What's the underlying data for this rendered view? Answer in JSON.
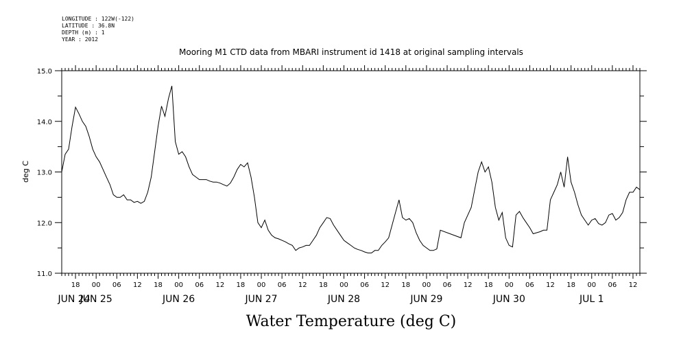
{
  "header": {
    "meta_lines": [
      "LONGITUDE : 122W(-122)",
      "LATITUDE : 36.8N",
      "DEPTH (m) : 1",
      "YEAR : 2012"
    ],
    "title": "Mooring M1 CTD data from MBARI instrument id 1418 at original sampling intervals"
  },
  "footer": {
    "bottom_title": "Water Temperature (deg C)"
  },
  "chart_data": {
    "type": "line",
    "title": "Mooring M1 CTD data from MBARI instrument id 1418 at original sampling intervals",
    "ylabel": "deg C",
    "xlabel": "",
    "ylim": [
      11.0,
      15.0
    ],
    "yticks": [
      "11.0",
      "12.0",
      "13.0",
      "14.0",
      "15.0"
    ],
    "xlim": [
      "2012-06-24 14:00",
      "2012-07-01 14:00"
    ],
    "x_hour_ticks": [
      "18",
      "00",
      "06",
      "12",
      "18",
      "00",
      "06",
      "12",
      "18",
      "00",
      "06",
      "12",
      "18",
      "00",
      "06",
      "12",
      "18",
      "00",
      "06",
      "12",
      "18",
      "00",
      "06",
      "12",
      "18",
      "00",
      "06",
      "12"
    ],
    "x_day_labels": [
      {
        "label": "JUN 24",
        "date": "2012-06-24"
      },
      {
        "label": "JUN 25",
        "date": "2012-06-25"
      },
      {
        "label": "JUN 26",
        "date": "2012-06-26"
      },
      {
        "label": "JUN 27",
        "date": "2012-06-27"
      },
      {
        "label": "JUN 28",
        "date": "2012-06-28"
      },
      {
        "label": "JUN 29",
        "date": "2012-06-29"
      },
      {
        "label": "JUN 30",
        "date": "2012-06-30"
      },
      {
        "label": "JUL 1",
        "date": "2012-07-01"
      }
    ],
    "grid": false,
    "series": [
      {
        "color": "#000000",
        "points": [
          [
            "2012-06-24 14:00",
            13.0
          ],
          [
            "2012-06-24 15:00",
            13.35
          ],
          [
            "2012-06-24 16:00",
            13.45
          ],
          [
            "2012-06-24 17:00",
            13.9
          ],
          [
            "2012-06-24 18:00",
            14.28
          ],
          [
            "2012-06-24 19:00",
            14.15
          ],
          [
            "2012-06-24 20:00",
            14.0
          ],
          [
            "2012-06-24 21:00",
            13.9
          ],
          [
            "2012-06-24 22:00",
            13.7
          ],
          [
            "2012-06-24 23:00",
            13.45
          ],
          [
            "2012-06-25 00:00",
            13.3
          ],
          [
            "2012-06-25 01:00",
            13.2
          ],
          [
            "2012-06-25 02:00",
            13.05
          ],
          [
            "2012-06-25 03:00",
            12.9
          ],
          [
            "2012-06-25 04:00",
            12.75
          ],
          [
            "2012-06-25 05:00",
            12.55
          ],
          [
            "2012-06-25 06:00",
            12.5
          ],
          [
            "2012-06-25 07:00",
            12.5
          ],
          [
            "2012-06-25 08:00",
            12.55
          ],
          [
            "2012-06-25 09:00",
            12.45
          ],
          [
            "2012-06-25 10:00",
            12.45
          ],
          [
            "2012-06-25 11:00",
            12.4
          ],
          [
            "2012-06-25 12:00",
            12.42
          ],
          [
            "2012-06-25 13:00",
            12.38
          ],
          [
            "2012-06-25 14:00",
            12.42
          ],
          [
            "2012-06-25 15:00",
            12.6
          ],
          [
            "2012-06-25 16:00",
            12.9
          ],
          [
            "2012-06-25 17:00",
            13.4
          ],
          [
            "2012-06-25 18:00",
            13.9
          ],
          [
            "2012-06-25 19:00",
            14.3
          ],
          [
            "2012-06-25 20:00",
            14.1
          ],
          [
            "2012-06-25 21:00",
            14.45
          ],
          [
            "2012-06-25 22:00",
            14.7
          ],
          [
            "2012-06-25 23:00",
            13.6
          ],
          [
            "2012-06-26 00:00",
            13.35
          ],
          [
            "2012-06-26 01:00",
            13.4
          ],
          [
            "2012-06-26 02:00",
            13.3
          ],
          [
            "2012-06-26 03:00",
            13.1
          ],
          [
            "2012-06-26 04:00",
            12.95
          ],
          [
            "2012-06-26 05:00",
            12.9
          ],
          [
            "2012-06-26 06:00",
            12.85
          ],
          [
            "2012-06-26 07:00",
            12.85
          ],
          [
            "2012-06-26 08:00",
            12.85
          ],
          [
            "2012-06-26 09:00",
            12.82
          ],
          [
            "2012-06-26 10:00",
            12.8
          ],
          [
            "2012-06-26 11:00",
            12.8
          ],
          [
            "2012-06-26 12:00",
            12.78
          ],
          [
            "2012-06-26 13:00",
            12.75
          ],
          [
            "2012-06-26 14:00",
            12.72
          ],
          [
            "2012-06-26 15:00",
            12.78
          ],
          [
            "2012-06-26 16:00",
            12.9
          ],
          [
            "2012-06-26 17:00",
            13.05
          ],
          [
            "2012-06-26 18:00",
            13.15
          ],
          [
            "2012-06-26 19:00",
            13.1
          ],
          [
            "2012-06-26 20:00",
            13.18
          ],
          [
            "2012-06-26 21:00",
            12.9
          ],
          [
            "2012-06-26 22:00",
            12.5
          ],
          [
            "2012-06-26 23:00",
            12.0
          ],
          [
            "2012-06-27 00:00",
            11.9
          ],
          [
            "2012-06-27 01:00",
            12.05
          ],
          [
            "2012-06-27 02:00",
            11.85
          ],
          [
            "2012-06-27 03:00",
            11.75
          ],
          [
            "2012-06-27 04:00",
            11.7
          ],
          [
            "2012-06-27 05:00",
            11.68
          ],
          [
            "2012-06-27 06:00",
            11.65
          ],
          [
            "2012-06-27 07:00",
            11.62
          ],
          [
            "2012-06-27 08:00",
            11.58
          ],
          [
            "2012-06-27 09:00",
            11.55
          ],
          [
            "2012-06-27 10:00",
            11.45
          ],
          [
            "2012-06-27 11:00",
            11.5
          ],
          [
            "2012-06-27 12:00",
            11.52
          ],
          [
            "2012-06-27 13:00",
            11.55
          ],
          [
            "2012-06-27 14:00",
            11.55
          ],
          [
            "2012-06-27 15:00",
            11.65
          ],
          [
            "2012-06-27 16:00",
            11.75
          ],
          [
            "2012-06-27 17:00",
            11.9
          ],
          [
            "2012-06-27 18:00",
            12.0
          ],
          [
            "2012-06-27 19:00",
            12.1
          ],
          [
            "2012-06-27 20:00",
            12.08
          ],
          [
            "2012-06-27 21:00",
            11.95
          ],
          [
            "2012-06-27 22:00",
            11.85
          ],
          [
            "2012-06-27 23:00",
            11.75
          ],
          [
            "2012-06-28 00:00",
            11.65
          ],
          [
            "2012-06-28 01:00",
            11.6
          ],
          [
            "2012-06-28 02:00",
            11.55
          ],
          [
            "2012-06-28 03:00",
            11.5
          ],
          [
            "2012-06-28 04:00",
            11.47
          ],
          [
            "2012-06-28 05:00",
            11.45
          ],
          [
            "2012-06-28 06:00",
            11.42
          ],
          [
            "2012-06-28 07:00",
            11.4
          ],
          [
            "2012-06-28 08:00",
            11.4
          ],
          [
            "2012-06-28 09:00",
            11.45
          ],
          [
            "2012-06-28 10:00",
            11.45
          ],
          [
            "2012-06-28 11:00",
            11.55
          ],
          [
            "2012-06-28 12:00",
            11.62
          ],
          [
            "2012-06-28 13:00",
            11.7
          ],
          [
            "2012-06-28 14:00",
            11.95
          ],
          [
            "2012-06-28 15:00",
            12.2
          ],
          [
            "2012-06-28 16:00",
            12.45
          ],
          [
            "2012-06-28 17:00",
            12.1
          ],
          [
            "2012-06-28 18:00",
            12.05
          ],
          [
            "2012-06-28 19:00",
            12.08
          ],
          [
            "2012-06-28 20:00",
            12.0
          ],
          [
            "2012-06-28 21:00",
            11.8
          ],
          [
            "2012-06-28 22:00",
            11.65
          ],
          [
            "2012-06-28 23:00",
            11.55
          ],
          [
            "2012-06-29 00:00",
            11.5
          ],
          [
            "2012-06-29 01:00",
            11.45
          ],
          [
            "2012-06-29 02:00",
            11.45
          ],
          [
            "2012-06-29 03:00",
            11.48
          ],
          [
            "2012-06-29 04:00",
            11.85
          ],
          [
            "2012-06-29 10:00",
            11.7
          ],
          [
            "2012-06-29 11:00",
            12.0
          ],
          [
            "2012-06-29 12:00",
            12.15
          ],
          [
            "2012-06-29 13:00",
            12.3
          ],
          [
            "2012-06-29 14:00",
            12.65
          ],
          [
            "2012-06-29 15:00",
            13.0
          ],
          [
            "2012-06-29 16:00",
            13.2
          ],
          [
            "2012-06-29 17:00",
            13.0
          ],
          [
            "2012-06-29 18:00",
            13.1
          ],
          [
            "2012-06-29 19:00",
            12.8
          ],
          [
            "2012-06-29 20:00",
            12.3
          ],
          [
            "2012-06-29 21:00",
            12.05
          ],
          [
            "2012-06-29 22:00",
            12.2
          ],
          [
            "2012-06-29 23:00",
            11.7
          ],
          [
            "2012-06-30 00:00",
            11.55
          ],
          [
            "2012-06-30 01:00",
            11.52
          ],
          [
            "2012-06-30 02:00",
            12.15
          ],
          [
            "2012-06-30 03:00",
            12.22
          ],
          [
            "2012-06-30 04:00",
            12.1
          ],
          [
            "2012-06-30 05:00",
            12.0
          ],
          [
            "2012-06-30 06:00",
            11.9
          ],
          [
            "2012-06-30 07:00",
            11.78
          ],
          [
            "2012-06-30 08:00",
            11.8
          ],
          [
            "2012-06-30 09:00",
            11.82
          ],
          [
            "2012-06-30 10:00",
            11.85
          ],
          [
            "2012-06-30 11:00",
            11.85
          ],
          [
            "2012-06-30 12:00",
            12.45
          ],
          [
            "2012-06-30 13:00",
            12.6
          ],
          [
            "2012-06-30 14:00",
            12.75
          ],
          [
            "2012-06-30 15:00",
            13.0
          ],
          [
            "2012-06-30 16:00",
            12.7
          ],
          [
            "2012-06-30 17:00",
            13.3
          ],
          [
            "2012-06-30 18:00",
            12.8
          ],
          [
            "2012-06-30 19:00",
            12.6
          ],
          [
            "2012-06-30 20:00",
            12.35
          ],
          [
            "2012-06-30 21:00",
            12.15
          ],
          [
            "2012-06-30 22:00",
            12.05
          ],
          [
            "2012-06-30 23:00",
            11.95
          ],
          [
            "2012-07-01 00:00",
            12.05
          ],
          [
            "2012-07-01 01:00",
            12.08
          ],
          [
            "2012-07-01 02:00",
            11.98
          ],
          [
            "2012-07-01 03:00",
            11.95
          ],
          [
            "2012-07-01 04:00",
            12.0
          ],
          [
            "2012-07-01 05:00",
            12.15
          ],
          [
            "2012-07-01 06:00",
            12.18
          ],
          [
            "2012-07-01 07:00",
            12.05
          ],
          [
            "2012-07-01 08:00",
            12.1
          ],
          [
            "2012-07-01 09:00",
            12.2
          ],
          [
            "2012-07-01 10:00",
            12.45
          ],
          [
            "2012-07-01 11:00",
            12.6
          ],
          [
            "2012-07-01 12:00",
            12.6
          ],
          [
            "2012-07-01 13:00",
            12.7
          ],
          [
            "2012-07-01 14:00",
            12.65
          ]
        ]
      }
    ]
  }
}
